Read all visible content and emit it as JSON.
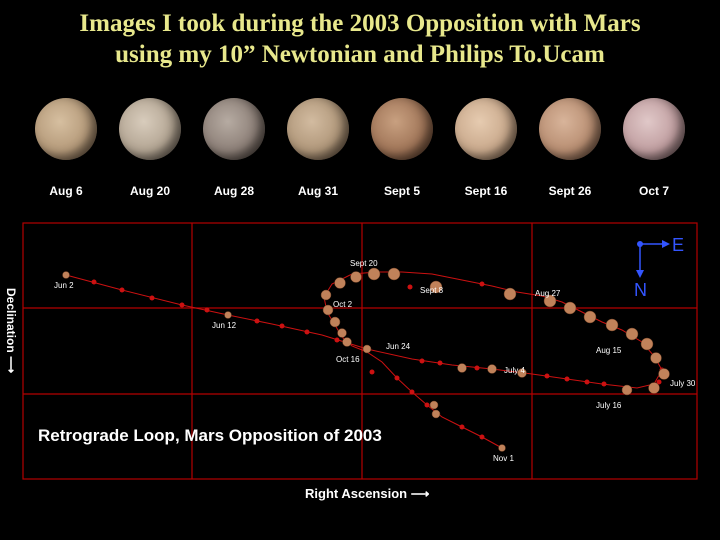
{
  "title": {
    "line1": "Images I took during the 2003 Opposition with Mars",
    "line2": "using my 10” Newtonian and Philips To.Ucam"
  },
  "photos": [
    {
      "date": "Aug 6",
      "color": "#b59a7a"
    },
    {
      "date": "Aug 20",
      "color": "#b3a593"
    },
    {
      "date": "Aug 28",
      "color": "#8d8078"
    },
    {
      "date": "Aug 31",
      "color": "#b0977a"
    },
    {
      "date": "Sept 5",
      "color": "#a07558"
    },
    {
      "date": "Sept 16",
      "color": "#c9a98c"
    },
    {
      "date": "Sept 26",
      "color": "#b88e72"
    },
    {
      "date": "Oct 7",
      "color": "#c09ea0"
    }
  ],
  "diagram": {
    "title": "Retrograde Loop, Mars Opposition of 2003",
    "xlabel": "Right Ascension",
    "ylabel": "Declination",
    "compass": {
      "east": "E",
      "north": "N"
    },
    "date_labels": [
      "Jun 2",
      "Jun 12",
      "Jun 24",
      "July 4",
      "July 16",
      "July 30",
      "Aug 15",
      "Aug 27",
      "Sept 8",
      "Sept 20",
      "Oct 2",
      "Oct 16",
      "Nov 1"
    ],
    "colors": {
      "grid": "#b30000",
      "marker": "#cc1111",
      "disk": "#c0825a",
      "accent": "#3355ff"
    }
  }
}
